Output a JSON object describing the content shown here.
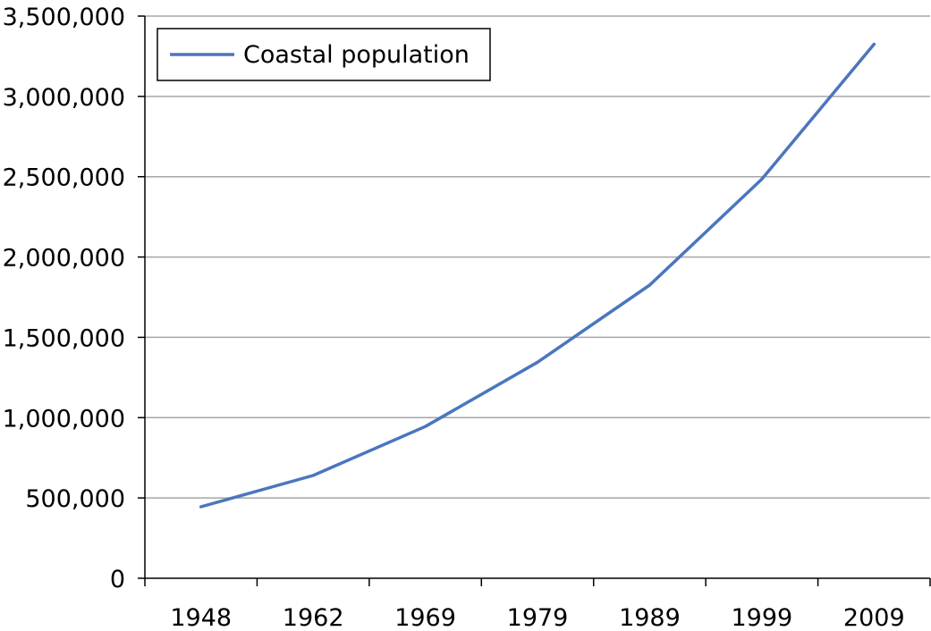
{
  "chart_data": {
    "type": "line",
    "title": "",
    "xlabel": "",
    "ylabel": "",
    "categories": [
      "1948",
      "1962",
      "1969",
      "1979",
      "1989",
      "1999",
      "2009"
    ],
    "series": [
      {
        "name": "Coastal population",
        "values": [
          445000,
          640000,
          945000,
          1345000,
          1825000,
          2485000,
          3325000
        ],
        "color": "#4a76be"
      }
    ],
    "ylim": [
      0,
      3500000
    ],
    "y_ticks": [
      0,
      500000,
      1000000,
      1500000,
      2000000,
      2500000,
      3000000,
      3500000
    ],
    "y_tick_labels": [
      "0",
      "500,000",
      "1,000,000",
      "1,500,000",
      "2,000,000",
      "2,500,000",
      "3,000,000",
      "3,500,000"
    ],
    "grid": true,
    "legend_position": "top-left",
    "colors": {
      "grid": "#a6a6a6",
      "axis": "#000000",
      "line": "#4a76be"
    }
  }
}
